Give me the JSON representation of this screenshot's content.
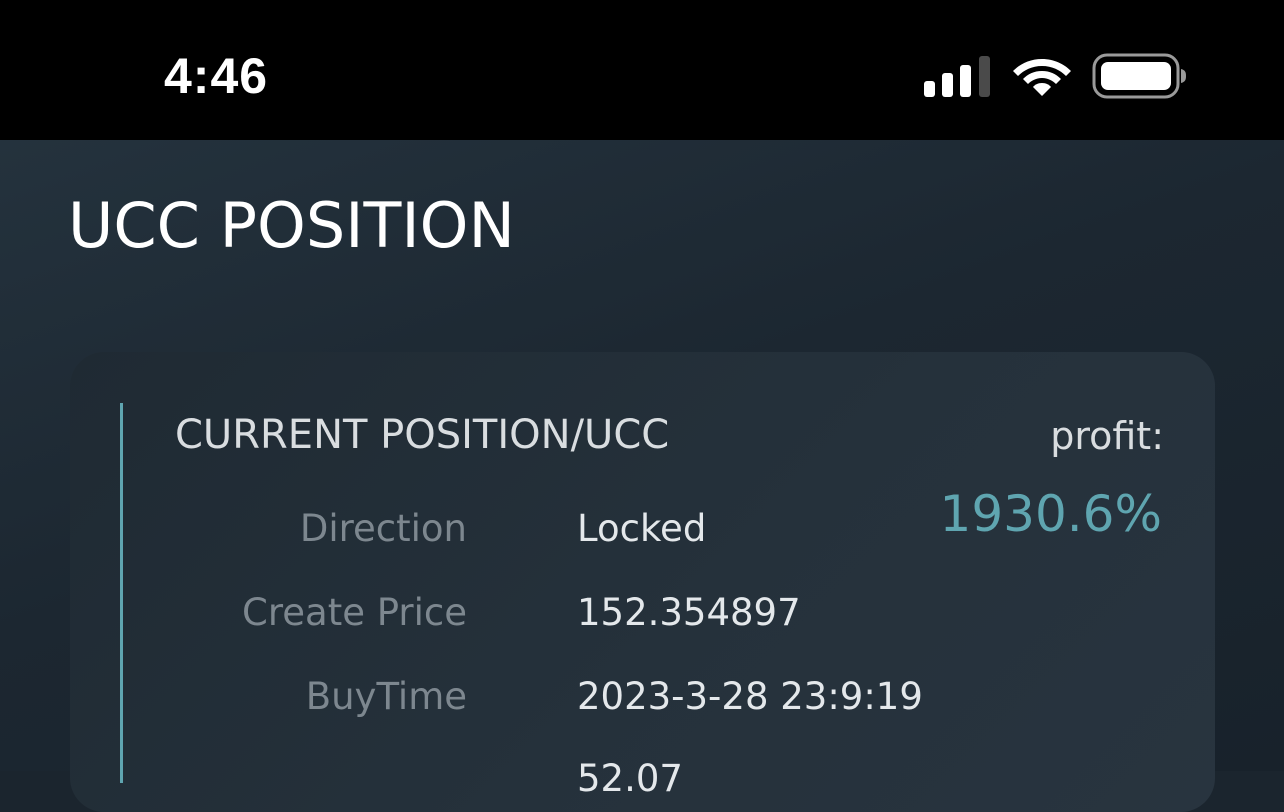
{
  "status_bar": {
    "time": "4:46",
    "icons": [
      "cellular-signal-icon",
      "wifi-icon",
      "battery-icon"
    ]
  },
  "page": {
    "title": "UCC POSITION"
  },
  "card": {
    "heading": "CURRENT POSITION/UCC",
    "profit_label": "profit:",
    "profit_value": "1930.6%",
    "accent_color": "#5fa5b0",
    "details": [
      {
        "label": "Direction",
        "value": "Locked"
      },
      {
        "label": "Create Price",
        "value": "152.354897"
      },
      {
        "label": "BuyTime",
        "value": "2023-3-28 23:9:19"
      },
      {
        "label": "",
        "value": "52.07"
      }
    ]
  }
}
